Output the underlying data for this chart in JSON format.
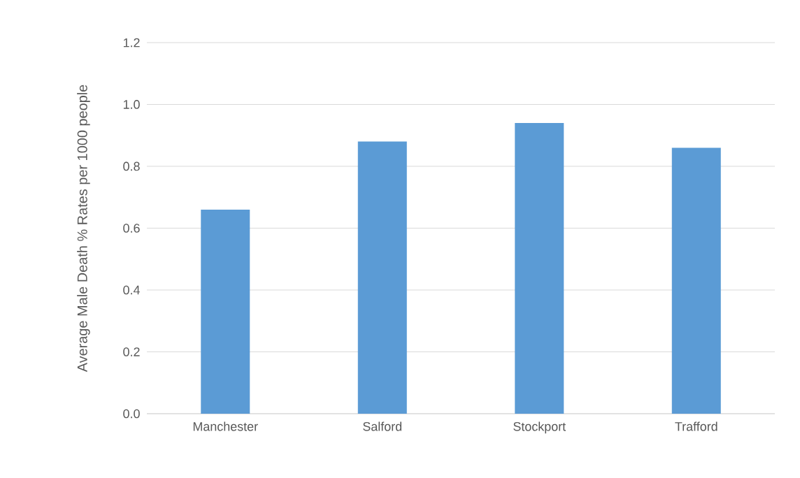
{
  "chart_data": {
    "type": "bar",
    "ylabel": "Average Male  Death % Rates per 1000 people",
    "categories": [
      "Manchester",
      "Salford",
      "Stockport",
      "Trafford"
    ],
    "values": [
      0.66,
      0.88,
      0.94,
      0.86
    ],
    "color": "#5b9bd5",
    "ylim": [
      0,
      1.2
    ],
    "yticks": [
      {
        "value": 0,
        "label": "0.0"
      },
      {
        "value": 0.2,
        "label": "0.2"
      },
      {
        "value": 0.4,
        "label": "0.4"
      },
      {
        "value": 0.6,
        "label": "0.6"
      },
      {
        "value": 0.8,
        "label": "0.8"
      },
      {
        "value": 1.0,
        "label": "1.0"
      },
      {
        "value": 1.2,
        "label": "1.2"
      }
    ],
    "grid": "y"
  }
}
